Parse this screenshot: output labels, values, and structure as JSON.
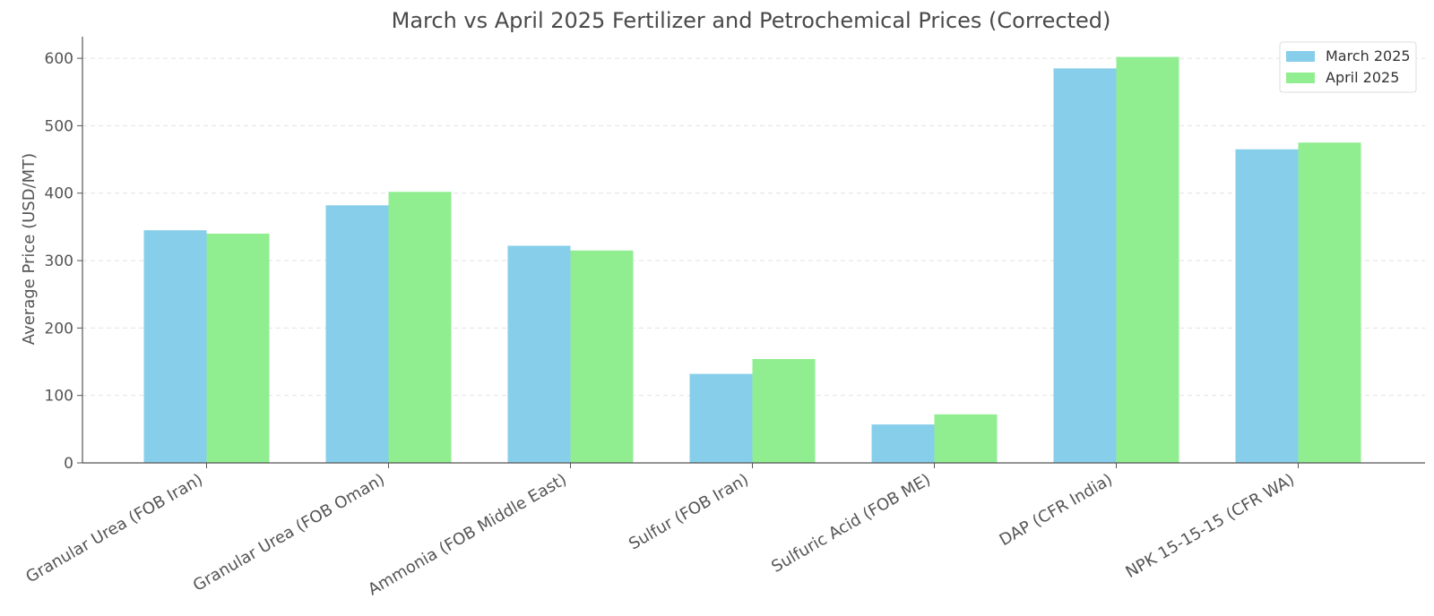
{
  "chart_data": {
    "type": "bar",
    "title": "March vs April 2025 Fertilizer and Petrochemical Prices (Corrected)",
    "xlabel": "",
    "ylabel": "Average Price (USD/MT)",
    "ylim": [
      0,
      632
    ],
    "yticks": [
      0,
      100,
      200,
      300,
      400,
      500,
      600
    ],
    "grid": true,
    "legend_position": "top-right",
    "categories": [
      "Granular Urea (FOB Iran)",
      "Granular Urea (FOB Oman)",
      "Ammonia (FOB Middle East)",
      "Sulfur (FOB Iran)",
      "Sulfuric Acid (FOB ME)",
      "DAP (CFR India)",
      "NPK 15-15-15 (CFR WA)"
    ],
    "series": [
      {
        "name": "March 2025",
        "color": "#87ceeb",
        "values": [
          345,
          382,
          322,
          132,
          57,
          585,
          465
        ]
      },
      {
        "name": "April 2025",
        "color": "#90ee90",
        "values": [
          340,
          402,
          315,
          154,
          72,
          602,
          475
        ]
      }
    ]
  }
}
